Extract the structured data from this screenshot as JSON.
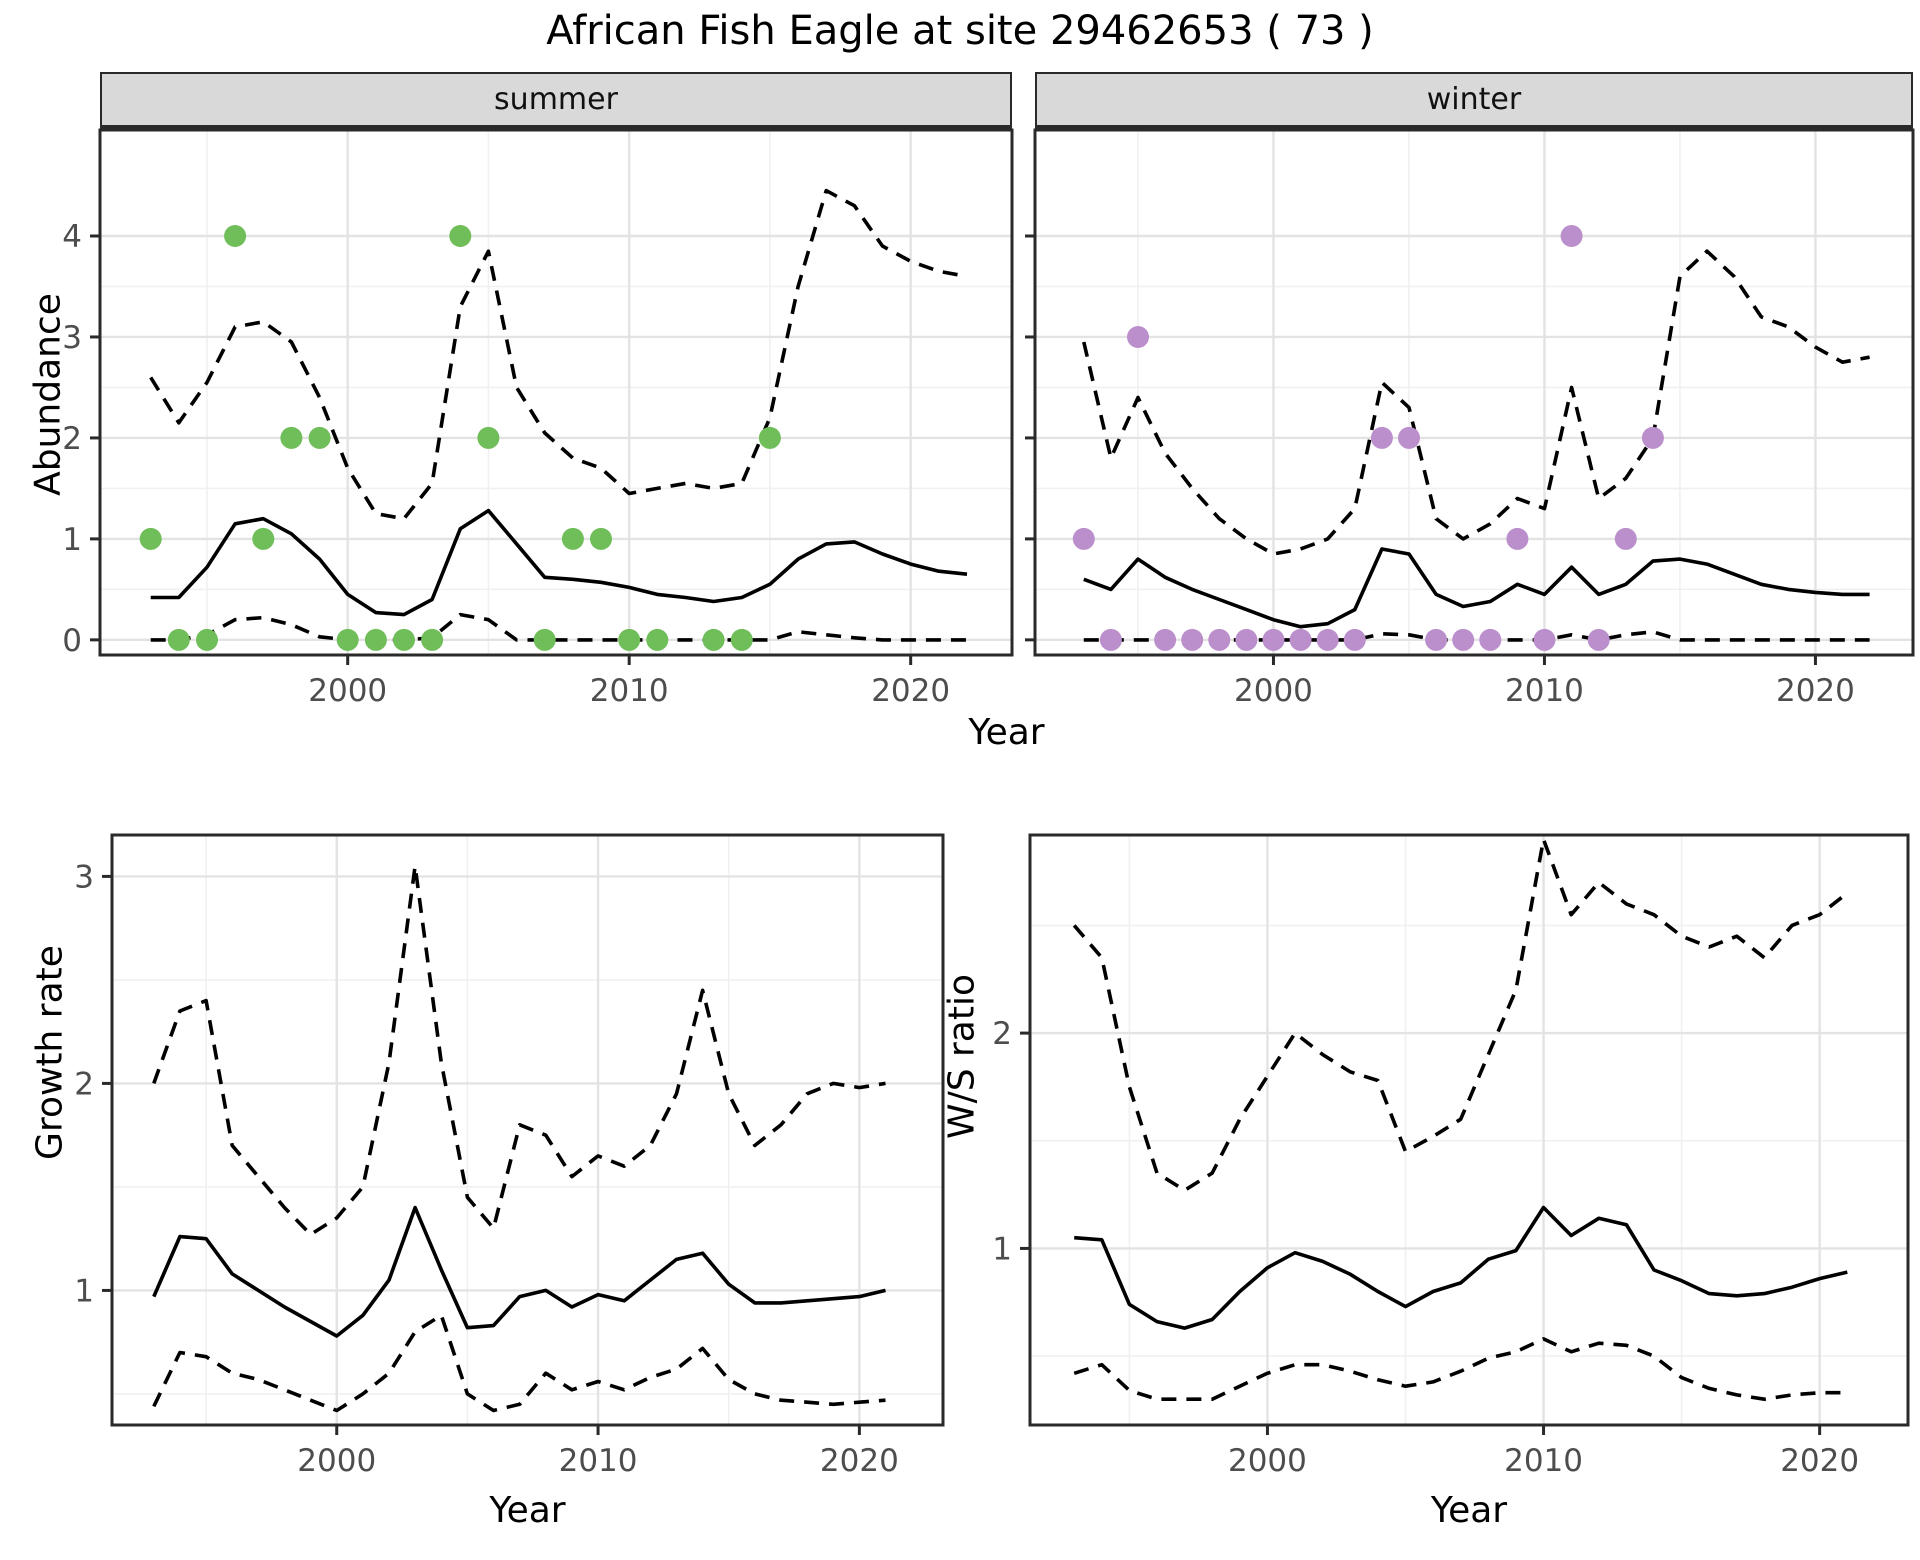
{
  "title": "African Fish Eagle at site 29462653 ( 73 )",
  "shared_xlabel": "Year",
  "colors": {
    "summer_points": "#6fbe59",
    "winter_points": "#bb8fcc",
    "line": "#000000",
    "strip_bg": "#d9d9d9",
    "panel_border": "#2a2a2a",
    "grid_major": "#e3e3e3",
    "grid_minor": "#f0f0f0",
    "tick_text": "#4d4d4d"
  },
  "chart_data": [
    {
      "id": "abundance-summer",
      "type": "line",
      "facet_label": "summer",
      "xlabel": "Year",
      "ylabel": "Abundance",
      "xlim": [
        1991.2,
        2023.6
      ],
      "ylim": [
        -0.15,
        5.05
      ],
      "x_ticks": [
        2000,
        2010,
        2020
      ],
      "x_minor": [
        1995,
        2005,
        2015
      ],
      "y_ticks": [
        0,
        1,
        2,
        3,
        4
      ],
      "y_minor": [
        0.5,
        1.5,
        2.5,
        3.5
      ],
      "grid": true,
      "legend": "none",
      "x": [
        1993,
        1994,
        1995,
        1996,
        1997,
        1998,
        1999,
        2000,
        2001,
        2002,
        2003,
        2004,
        2005,
        2006,
        2007,
        2008,
        2009,
        2010,
        2011,
        2012,
        2013,
        2014,
        2015,
        2016,
        2017,
        2018,
        2019,
        2020,
        2021,
        2022
      ],
      "series": [
        {
          "name": "median_fit",
          "style": "solid",
          "values": [
            0.42,
            0.42,
            0.72,
            1.15,
            1.2,
            1.05,
            0.8,
            0.45,
            0.27,
            0.25,
            0.4,
            1.1,
            1.28,
            0.95,
            0.62,
            0.6,
            0.57,
            0.52,
            0.45,
            0.42,
            0.38,
            0.42,
            0.55,
            0.8,
            0.95,
            0.97,
            0.85,
            0.75,
            0.68,
            0.65
          ]
        },
        {
          "name": "ci_upper",
          "style": "dashed",
          "values": [
            2.6,
            2.15,
            2.55,
            3.1,
            3.15,
            2.95,
            2.4,
            1.7,
            1.25,
            1.2,
            1.55,
            3.3,
            3.85,
            2.5,
            2.05,
            1.8,
            1.7,
            1.45,
            1.5,
            1.55,
            1.5,
            1.55,
            2.2,
            3.5,
            4.45,
            4.3,
            3.9,
            3.75,
            3.65,
            3.6
          ]
        },
        {
          "name": "ci_lower",
          "style": "dashed",
          "values": [
            0.0,
            0.0,
            0.05,
            0.2,
            0.22,
            0.15,
            0.03,
            0.0,
            0.0,
            0.0,
            0.02,
            0.25,
            0.2,
            0.0,
            0.0,
            0.0,
            0.0,
            0.0,
            0.0,
            0.0,
            0.0,
            0.0,
            0.0,
            0.08,
            0.05,
            0.02,
            0.0,
            0.0,
            0.0,
            0.0
          ]
        }
      ],
      "points": {
        "name": "observed_counts_summer",
        "color": "#6fbe59",
        "x": [
          1993,
          1994,
          1995,
          1996,
          1997,
          1998,
          1999,
          2000,
          2001,
          2002,
          2003,
          2004,
          2005,
          2007,
          2008,
          2009,
          2010,
          2011,
          2013,
          2014,
          2015
        ],
        "y": [
          1,
          0,
          0,
          4,
          1,
          2,
          2,
          0,
          0,
          0,
          0,
          4,
          2,
          0,
          1,
          1,
          0,
          0,
          0,
          0,
          2
        ]
      }
    },
    {
      "id": "abundance-winter",
      "type": "line",
      "facet_label": "winter",
      "xlabel": "Year",
      "ylabel": "Abundance",
      "xlim": [
        1991.2,
        2023.6
      ],
      "ylim": [
        -0.15,
        5.05
      ],
      "x_ticks": [
        2000,
        2010,
        2020
      ],
      "x_minor": [
        1995,
        2005,
        2015
      ],
      "y_ticks": [
        0,
        1,
        2,
        3,
        4
      ],
      "y_minor": [
        0.5,
        1.5,
        2.5,
        3.5
      ],
      "grid": true,
      "legend": "none",
      "x": [
        1993,
        1994,
        1995,
        1996,
        1997,
        1998,
        1999,
        2000,
        2001,
        2002,
        2003,
        2004,
        2005,
        2006,
        2007,
        2008,
        2009,
        2010,
        2011,
        2012,
        2013,
        2014,
        2015,
        2016,
        2017,
        2018,
        2019,
        2020,
        2021,
        2022
      ],
      "series": [
        {
          "name": "median_fit",
          "style": "solid",
          "values": [
            0.6,
            0.5,
            0.8,
            0.62,
            0.5,
            0.4,
            0.3,
            0.2,
            0.13,
            0.16,
            0.3,
            0.9,
            0.85,
            0.45,
            0.33,
            0.38,
            0.55,
            0.45,
            0.72,
            0.45,
            0.55,
            0.78,
            0.8,
            0.75,
            0.65,
            0.55,
            0.5,
            0.47,
            0.45,
            0.45
          ]
        },
        {
          "name": "ci_upper",
          "style": "dashed",
          "values": [
            2.95,
            1.8,
            2.4,
            1.85,
            1.5,
            1.2,
            1.0,
            0.85,
            0.9,
            1.0,
            1.3,
            2.55,
            2.3,
            1.2,
            1.0,
            1.15,
            1.4,
            1.3,
            2.5,
            1.4,
            1.6,
            2.0,
            3.6,
            3.85,
            3.6,
            3.2,
            3.1,
            2.9,
            2.75,
            2.8
          ]
        },
        {
          "name": "ci_lower",
          "style": "dashed",
          "values": [
            0,
            0,
            0,
            0,
            0,
            0,
            0,
            0,
            0,
            0,
            0,
            0.06,
            0.05,
            0,
            0,
            0,
            0,
            0,
            0.05,
            0,
            0.05,
            0.08,
            0,
            0,
            0,
            0,
            0,
            0,
            0,
            0
          ]
        }
      ],
      "points": {
        "name": "observed_counts_winter",
        "color": "#bb8fcc",
        "x": [
          1993,
          1994,
          1995,
          1996,
          1997,
          1998,
          1999,
          2000,
          2001,
          2002,
          2003,
          2004,
          2005,
          2006,
          2007,
          2008,
          2009,
          2010,
          2011,
          2012,
          2013,
          2014
        ],
        "y": [
          1,
          0,
          3,
          0,
          0,
          0,
          0,
          0,
          0,
          0,
          0,
          2,
          2,
          0,
          0,
          0,
          1,
          0,
          4,
          0,
          1,
          2
        ]
      }
    },
    {
      "id": "growth-rate",
      "type": "line",
      "facet_label": "",
      "xlabel": "Year",
      "ylabel": "Growth rate",
      "xlim": [
        1991.4,
        2023.2
      ],
      "ylim": [
        0.35,
        3.2
      ],
      "x_ticks": [
        2000,
        2010,
        2020
      ],
      "x_minor": [
        1995,
        2005,
        2015
      ],
      "y_ticks": [
        1,
        2,
        3
      ],
      "y_minor": [
        0.5,
        1.5,
        2.5
      ],
      "grid": true,
      "legend": "none",
      "x": [
        1993,
        1994,
        1995,
        1996,
        1997,
        1998,
        1999,
        2000,
        2001,
        2002,
        2003,
        2004,
        2005,
        2006,
        2007,
        2008,
        2009,
        2010,
        2011,
        2012,
        2013,
        2014,
        2015,
        2016,
        2017,
        2018,
        2019,
        2020,
        2021
      ],
      "series": [
        {
          "name": "median_fit",
          "style": "solid",
          "values": [
            0.97,
            1.26,
            1.25,
            1.08,
            1.0,
            0.92,
            0.85,
            0.78,
            0.88,
            1.05,
            1.4,
            1.1,
            0.82,
            0.83,
            0.97,
            1.0,
            0.92,
            0.98,
            0.95,
            1.05,
            1.15,
            1.18,
            1.03,
            0.94,
            0.94,
            0.95,
            0.96,
            0.97,
            1.0
          ]
        },
        {
          "name": "ci_upper",
          "style": "dashed",
          "values": [
            2.0,
            2.35,
            2.4,
            1.7,
            1.55,
            1.4,
            1.27,
            1.35,
            1.5,
            2.1,
            3.05,
            2.1,
            1.45,
            1.3,
            1.8,
            1.75,
            1.55,
            1.65,
            1.6,
            1.7,
            1.95,
            2.45,
            1.95,
            1.7,
            1.8,
            1.95,
            2.0,
            1.98,
            2.0
          ]
        },
        {
          "name": "ci_lower",
          "style": "dashed",
          "values": [
            0.44,
            0.7,
            0.68,
            0.6,
            0.57,
            0.52,
            0.47,
            0.42,
            0.5,
            0.6,
            0.8,
            0.88,
            0.5,
            0.42,
            0.45,
            0.6,
            0.52,
            0.56,
            0.52,
            0.58,
            0.62,
            0.72,
            0.57,
            0.5,
            0.47,
            0.46,
            0.45,
            0.46,
            0.47
          ]
        }
      ],
      "points": null
    },
    {
      "id": "ws-ratio",
      "type": "line",
      "facet_label": "",
      "xlabel": "Year",
      "ylabel": "W/S ratio",
      "xlim": [
        1991.4,
        2023.2
      ],
      "ylim": [
        0.18,
        2.92
      ],
      "x_ticks": [
        2000,
        2010,
        2020
      ],
      "x_minor": [
        1995,
        2005,
        2015
      ],
      "y_ticks": [
        1,
        2
      ],
      "y_minor": [
        0.5,
        1.5,
        2.5
      ],
      "grid": true,
      "legend": "none",
      "x": [
        1993,
        1994,
        1995,
        1996,
        1997,
        1998,
        1999,
        2000,
        2001,
        2002,
        2003,
        2004,
        2005,
        2006,
        2007,
        2008,
        2009,
        2010,
        2011,
        2012,
        2013,
        2014,
        2015,
        2016,
        2017,
        2018,
        2019,
        2020,
        2021
      ],
      "series": [
        {
          "name": "median_fit",
          "style": "solid",
          "values": [
            1.05,
            1.04,
            0.74,
            0.66,
            0.63,
            0.67,
            0.8,
            0.91,
            0.98,
            0.94,
            0.88,
            0.8,
            0.73,
            0.8,
            0.84,
            0.95,
            0.99,
            1.19,
            1.06,
            1.14,
            1.11,
            0.9,
            0.85,
            0.79,
            0.78,
            0.79,
            0.82,
            0.86,
            0.89
          ]
        },
        {
          "name": "ci_upper",
          "style": "dashed",
          "values": [
            2.5,
            2.35,
            1.75,
            1.35,
            1.27,
            1.35,
            1.6,
            1.8,
            2.0,
            1.9,
            1.82,
            1.78,
            1.45,
            1.52,
            1.6,
            1.9,
            2.2,
            2.9,
            2.55,
            2.7,
            2.6,
            2.55,
            2.45,
            2.4,
            2.45,
            2.35,
            2.5,
            2.55,
            2.65
          ]
        },
        {
          "name": "ci_lower",
          "style": "dashed",
          "values": [
            0.42,
            0.46,
            0.34,
            0.3,
            0.3,
            0.3,
            0.36,
            0.42,
            0.46,
            0.46,
            0.43,
            0.39,
            0.36,
            0.38,
            0.43,
            0.49,
            0.52,
            0.58,
            0.52,
            0.56,
            0.55,
            0.5,
            0.4,
            0.35,
            0.32,
            0.3,
            0.32,
            0.33,
            0.33
          ]
        }
      ],
      "points": null
    }
  ]
}
